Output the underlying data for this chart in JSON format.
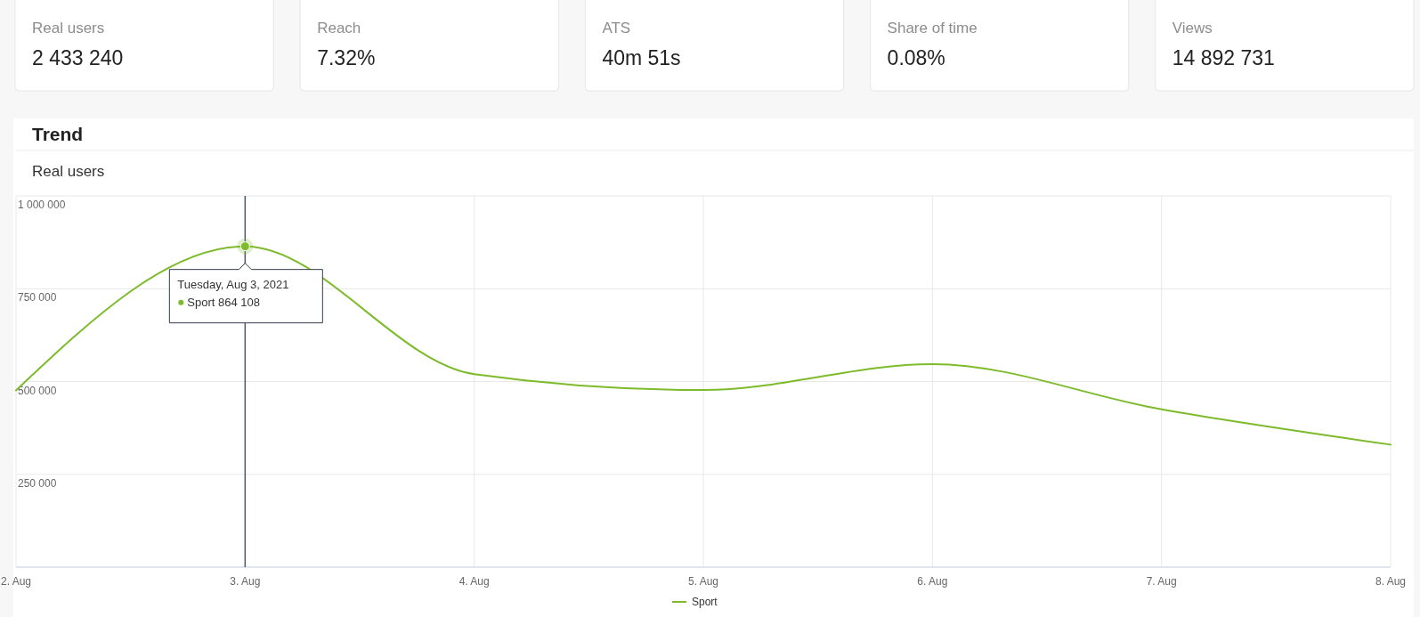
{
  "chart_data": [
    {
      "type": "other",
      "annotations": [
        "Real users",
        "2 433 240",
        "Reach",
        "7.32%",
        "ATS",
        "40m 51s",
        "Share of time",
        "0.08%",
        "Views",
        "14 892 731"
      ]
    },
    {
      "type": "line",
      "title": "Trend",
      "subtitle": "Real users",
      "x": [
        "2021-08-02",
        "2021-08-03",
        "2021-08-04",
        "2021-08-05",
        "2021-08-06",
        "2021-08-07",
        "2021-08-08"
      ],
      "series": [
        {
          "name": "Sport",
          "color": "#7dbb2c",
          "values": [
            476000,
            864108,
            520000,
            477000,
            547000,
            425000,
            330000
          ]
        }
      ],
      "xlim": [
        "2021-08-02",
        "2021-08-08"
      ],
      "xticks": [
        {
          "value": "2021-08-02",
          "label": "2. Aug"
        },
        {
          "value": "2021-08-03",
          "label": "3. Aug"
        },
        {
          "value": "2021-08-04",
          "label": "4. Aug"
        },
        {
          "value": "2021-08-05",
          "label": "5. Aug"
        },
        {
          "value": "2021-08-06",
          "label": "6. Aug"
        },
        {
          "value": "2021-08-07",
          "label": "7. Aug"
        },
        {
          "value": "2021-08-08",
          "label": "8. Aug"
        }
      ],
      "ylim": [
        0,
        1000000
      ],
      "yticks": [
        {
          "value": 0,
          "label": null
        },
        {
          "value": 250000,
          "label": "250 000"
        },
        {
          "value": 500000,
          "label": "500 000"
        },
        {
          "value": 750000,
          "label": "750 000"
        },
        {
          "value": 1000000,
          "label": "1 000 000"
        }
      ],
      "ref_lines": [
        {
          "axis": "x",
          "value": "2021-08-03",
          "label": null,
          "color": "#4a5a73"
        }
      ],
      "annotations": [
        {
          "text": "Tuesday, Aug 3, 2021",
          "x": "2021-08-03",
          "y": 864108
        },
        "Sport 864 108"
      ],
      "grid": true,
      "legend": "bottom",
      "marker": "none",
      "line_style": "solid"
    }
  ]
}
